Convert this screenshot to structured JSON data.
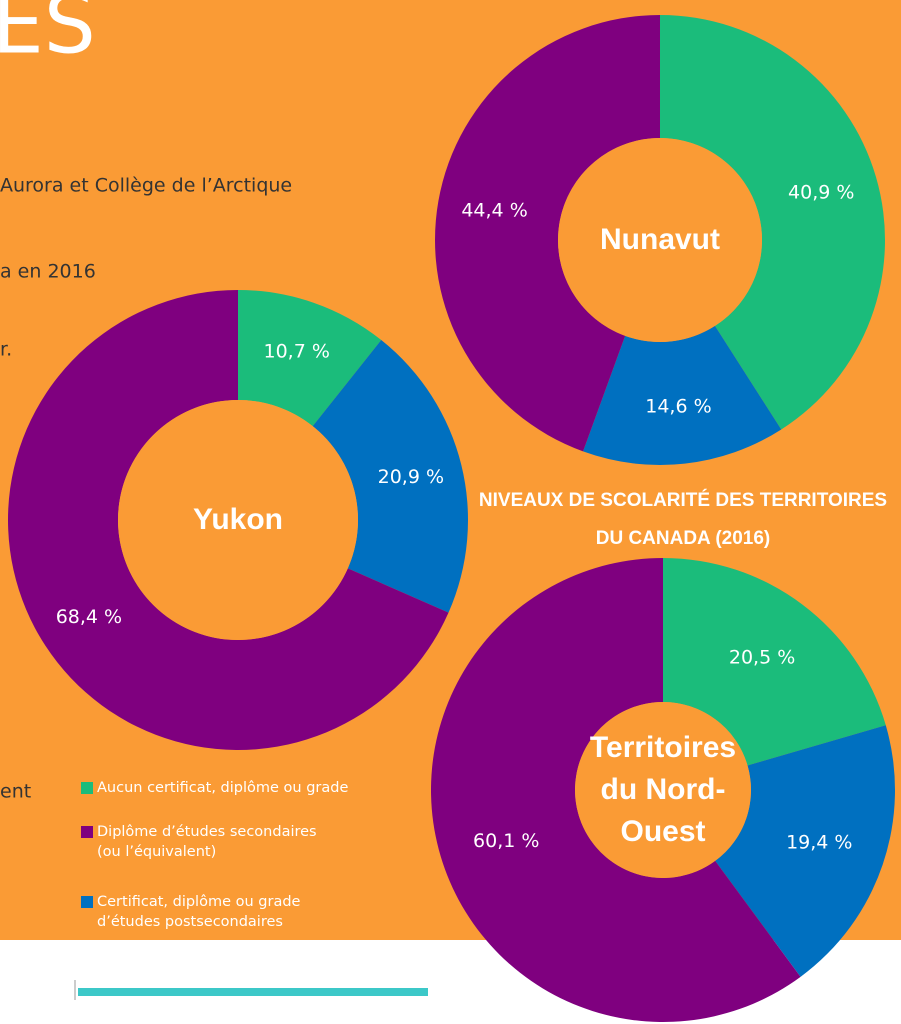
{
  "heading": "ES",
  "text_fragments": [
    "Aurora et Collège de l’Arctique",
    "a en 2016",
    "r.",
    "ent"
  ],
  "infographic_title": "NIVEAUX DE SCOLARITÉ DES TERRITOIRES DU CANADA (2016)",
  "chart_data": [
    {
      "type": "pie",
      "title": "Nunavut",
      "categories": [
        "Aucun certificat, diplôme ou grade",
        "Certificat, diplôme ou grade d’études postsecondaires",
        "Diplôme d’études secondaires (ou l’équivalent)"
      ],
      "values": [
        40.9,
        14.6,
        44.4
      ],
      "value_labels": [
        "40,9 %",
        "14,6 %",
        "44,4 %"
      ],
      "colors": [
        "#1bbc7b",
        "#0070c0",
        "#7f007f"
      ]
    },
    {
      "type": "pie",
      "title": "Yukon",
      "categories": [
        "Aucun certificat, diplôme ou grade",
        "Certificat, diplôme ou grade d’études postsecondaires",
        "Diplôme d’études secondaires (ou l’équivalent)"
      ],
      "values": [
        10.7,
        20.9,
        68.4
      ],
      "value_labels": [
        "10,7 %",
        "20,9 %",
        "68,4 %"
      ],
      "colors": [
        "#1bbc7b",
        "#0070c0",
        "#7f007f"
      ]
    },
    {
      "type": "pie",
      "title": "Territoires du Nord-Ouest",
      "categories": [
        "Aucun certificat, diplôme ou grade",
        "Certificat, diplôme ou grade d’études postsecondaires",
        "Diplôme d’études secondaires (ou l’équivalent)"
      ],
      "values": [
        20.5,
        19.4,
        60.1
      ],
      "value_labels": [
        "20,5 %",
        "19,4 %",
        "60,1 %"
      ],
      "colors": [
        "#1bbc7b",
        "#0070c0",
        "#7f007f"
      ]
    }
  ],
  "legend_order": [
    0,
    2,
    1
  ]
}
